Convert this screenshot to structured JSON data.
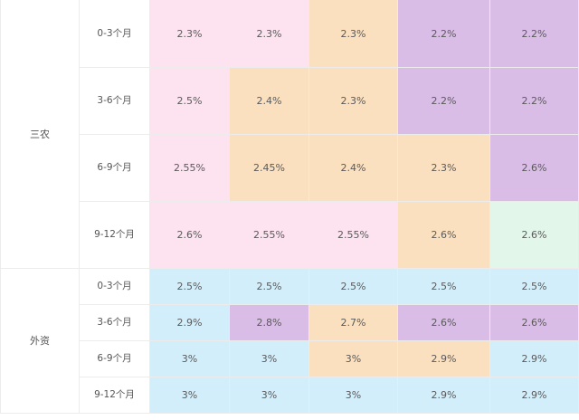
{
  "colors": {
    "pink": "#fde2f0",
    "orange": "#fbe0bf",
    "purple": "#d9bde6",
    "blue": "#d3eefb",
    "green": "#e2f6ea"
  },
  "groups": [
    {
      "name": "三农",
      "rows": [
        {
          "period": "0-3个月",
          "cells": [
            {
              "value": "2.3%",
              "color": "pink"
            },
            {
              "value": "2.3%",
              "color": "pink"
            },
            {
              "value": "2.3%",
              "color": "orange"
            },
            {
              "value": "2.2%",
              "color": "purple"
            },
            {
              "value": "2.2%",
              "color": "purple"
            }
          ]
        },
        {
          "period": "3-6个月",
          "cells": [
            {
              "value": "2.5%",
              "color": "pink"
            },
            {
              "value": "2.4%",
              "color": "orange"
            },
            {
              "value": "2.3%",
              "color": "orange"
            },
            {
              "value": "2.2%",
              "color": "purple"
            },
            {
              "value": "2.2%",
              "color": "purple"
            }
          ]
        },
        {
          "period": "6-9个月",
          "cells": [
            {
              "value": "2.55%",
              "color": "pink"
            },
            {
              "value": "2.45%",
              "color": "orange"
            },
            {
              "value": "2.4%",
              "color": "orange"
            },
            {
              "value": "2.3%",
              "color": "orange"
            },
            {
              "value": "2.6%",
              "color": "purple"
            }
          ]
        },
        {
          "period": "9-12个月",
          "cells": [
            {
              "value": "2.6%",
              "color": "pink"
            },
            {
              "value": "2.55%",
              "color": "pink"
            },
            {
              "value": "2.55%",
              "color": "pink"
            },
            {
              "value": "2.6%",
              "color": "orange"
            },
            {
              "value": "2.6%",
              "color": "green"
            }
          ]
        }
      ]
    },
    {
      "name": "外资",
      "rows": [
        {
          "period": "0-3个月",
          "cells": [
            {
              "value": "2.5%",
              "color": "blue"
            },
            {
              "value": "2.5%",
              "color": "blue"
            },
            {
              "value": "2.5%",
              "color": "blue"
            },
            {
              "value": "2.5%",
              "color": "blue"
            },
            {
              "value": "2.5%",
              "color": "blue"
            }
          ]
        },
        {
          "period": "3-6个月",
          "cells": [
            {
              "value": "2.9%",
              "color": "blue"
            },
            {
              "value": "2.8%",
              "color": "purple"
            },
            {
              "value": "2.7%",
              "color": "orange"
            },
            {
              "value": "2.6%",
              "color": "purple"
            },
            {
              "value": "2.6%",
              "color": "purple"
            }
          ]
        },
        {
          "period": "6-9个月",
          "cells": [
            {
              "value": "3%",
              "color": "blue"
            },
            {
              "value": "3%",
              "color": "blue"
            },
            {
              "value": "3%",
              "color": "orange"
            },
            {
              "value": "2.9%",
              "color": "orange"
            },
            {
              "value": "2.9%",
              "color": "blue"
            }
          ]
        },
        {
          "period": "9-12个月",
          "cells": [
            {
              "value": "3%",
              "color": "blue"
            },
            {
              "value": "3%",
              "color": "blue"
            },
            {
              "value": "3%",
              "color": "blue"
            },
            {
              "value": "2.9%",
              "color": "blue"
            },
            {
              "value": "2.9%",
              "color": "blue"
            }
          ]
        }
      ]
    }
  ]
}
